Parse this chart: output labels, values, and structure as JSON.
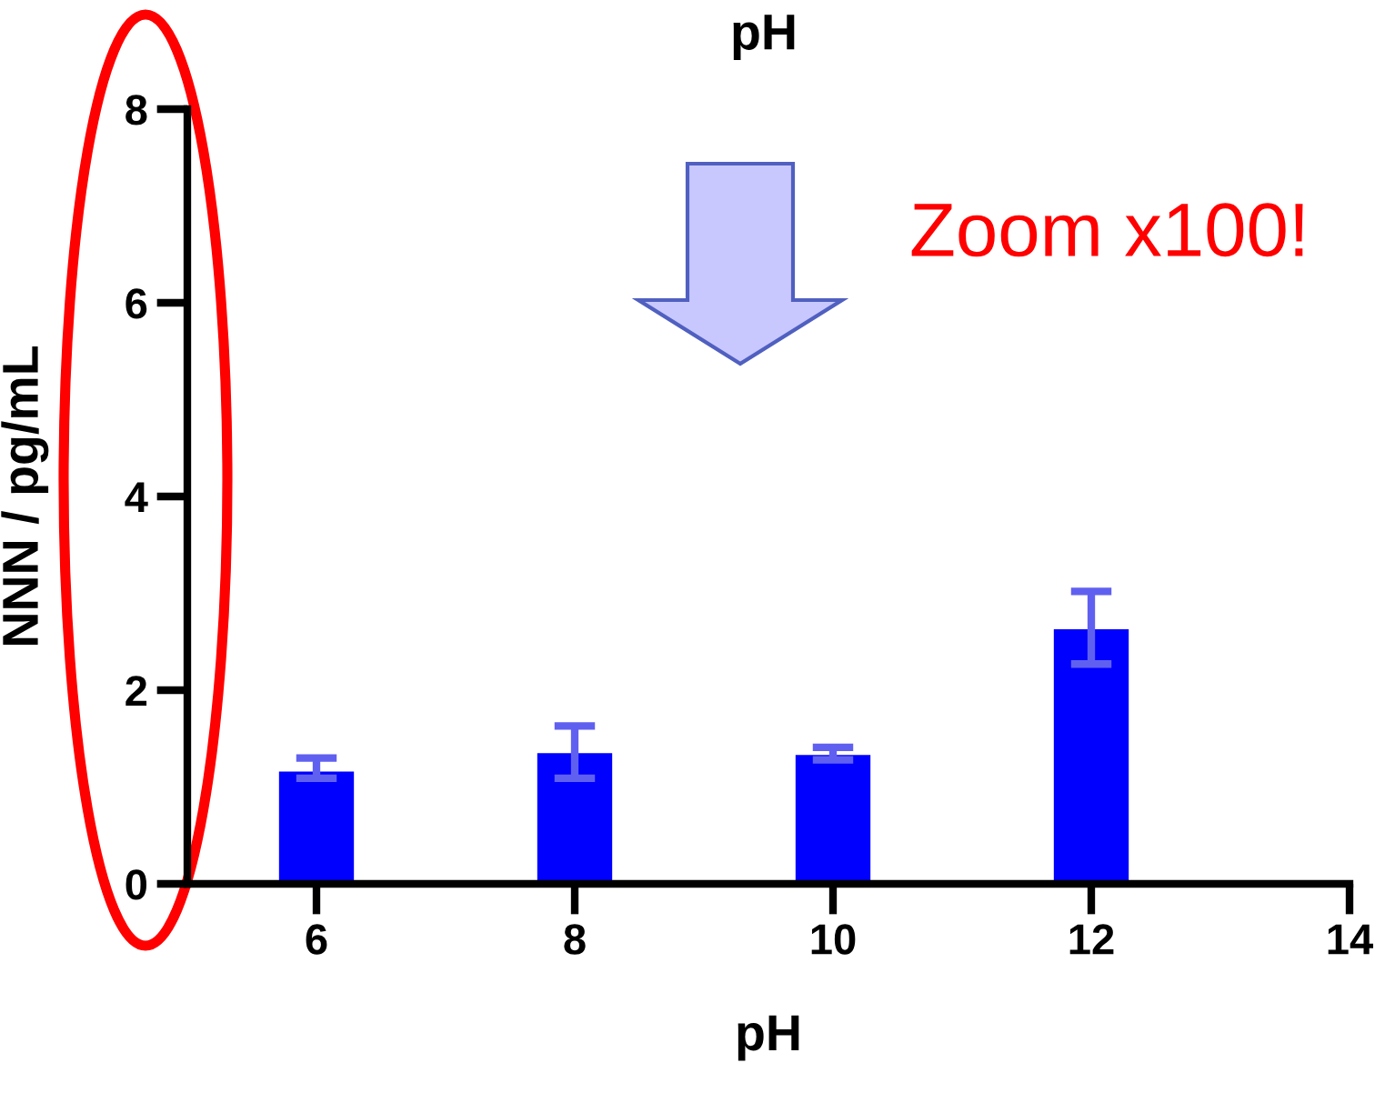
{
  "chart_data": {
    "type": "bar",
    "title": "pH",
    "xlabel": "pH",
    "ylabel": "NNN / pg/mL",
    "x": [
      6,
      8,
      10,
      12
    ],
    "values": [
      1.16,
      1.35,
      1.33,
      2.63
    ],
    "errors": [
      [
        1.09,
        1.3
      ],
      [
        1.09,
        1.63
      ],
      [
        1.28,
        1.41
      ],
      [
        2.27,
        3.02
      ]
    ],
    "color": "#0000ff",
    "xlim": [
      5,
      14
    ],
    "xticks": [
      6,
      8,
      10,
      12,
      14
    ],
    "ylim": [
      0,
      8
    ],
    "yticks": [
      0,
      2,
      4,
      6,
      8
    ],
    "grid": false,
    "annotations": [
      "Zoom x100!"
    ]
  }
}
